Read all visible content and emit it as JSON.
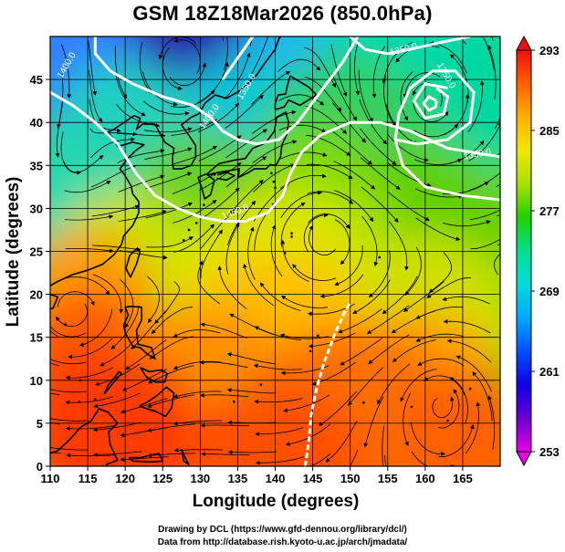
{
  "title": "GSM 18Z18Mar2026 (850.0hPa)",
  "map": {
    "lon_range": [
      110,
      170
    ],
    "lat_range": [
      0,
      50
    ],
    "lon_ticks": [
      110,
      115,
      120,
      125,
      130,
      135,
      140,
      145,
      150,
      155,
      160,
      165
    ],
    "lat_ticks": [
      0,
      5,
      10,
      15,
      20,
      25,
      30,
      35,
      40,
      45
    ],
    "xlabel": "Longitude (degrees)",
    "ylabel": "Latitude  (degrees)",
    "field": "850 hPa temperature (K) with wind streamlines",
    "contour_labels": [
      {
        "text": "1400.0",
        "lon": 112.5,
        "lat": 46.5,
        "angle": -60
      },
      {
        "text": "1350.0",
        "lon": 136.5,
        "lat": 44.0,
        "angle": -60
      },
      {
        "text": "1400.0",
        "lon": 131.5,
        "lat": 40.5,
        "angle": -55
      },
      {
        "text": "1450.0",
        "lon": 134.8,
        "lat": 29.3,
        "angle": -20
      },
      {
        "text": "1350.0",
        "lon": 157.2,
        "lat": 48.2,
        "angle": -15
      },
      {
        "text": "1350.0",
        "lon": 162.5,
        "lat": 45.3,
        "angle": 60
      },
      {
        "text": "1350.0",
        "lon": 167.0,
        "lat": 36.0,
        "angle": -10
      }
    ]
  },
  "colorbar": {
    "ticks": [
      253,
      261,
      269,
      277,
      285,
      293
    ],
    "range": [
      253,
      293
    ],
    "colors": [
      "#e600e6",
      "#6a00d0",
      "#1000e8",
      "#0050ff",
      "#00a8ff",
      "#00dcdc",
      "#00e090",
      "#20d000",
      "#a8e000",
      "#f0e800",
      "#ffb000",
      "#ff6000",
      "#ee1010"
    ]
  },
  "credits": {
    "line1": "Drawing by DCL (https://www.gfd-dennou.org/library/dcl/)",
    "line2": "Data from http://database.rish.kyoto-u.ac.jp/arch/jmadata/"
  }
}
